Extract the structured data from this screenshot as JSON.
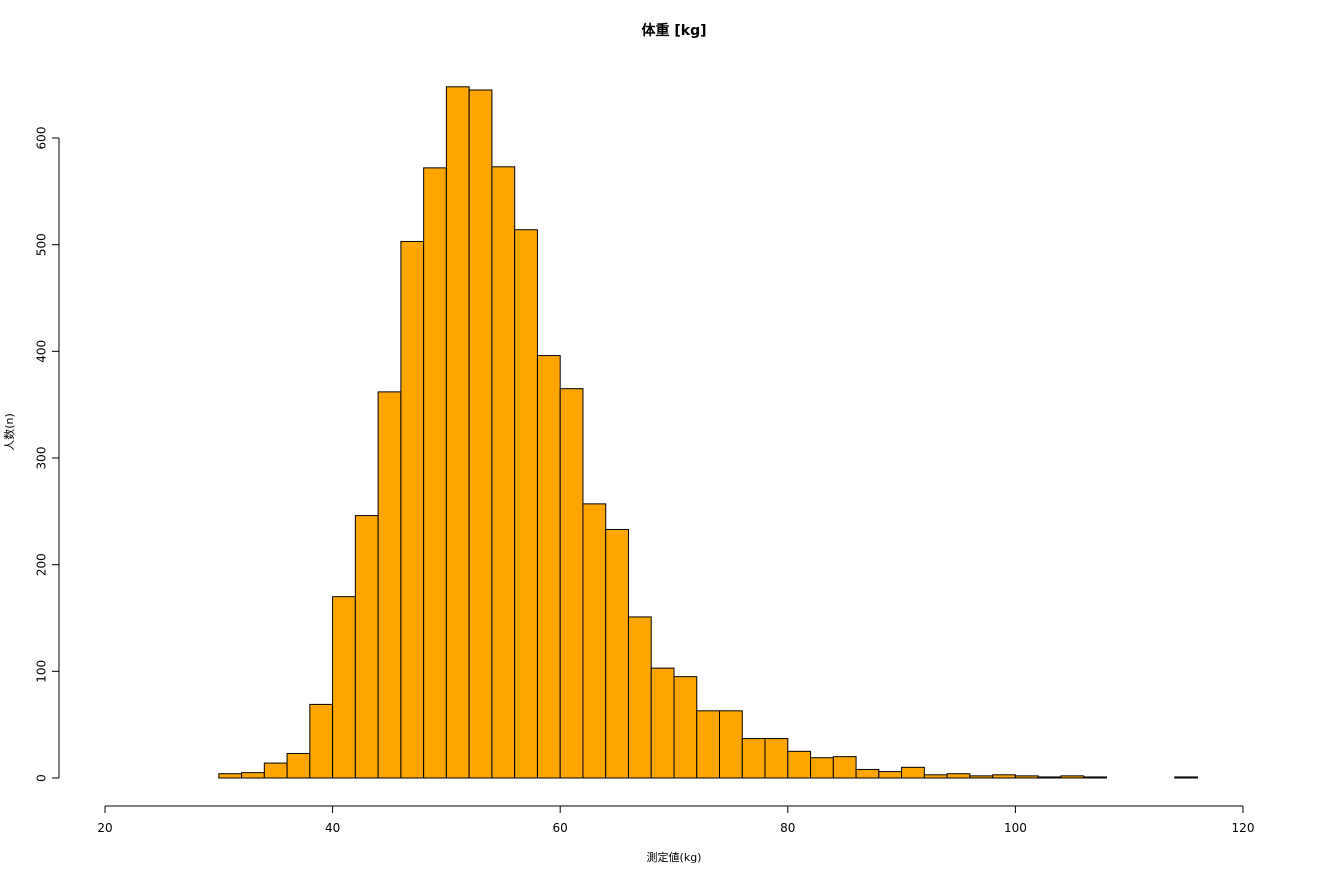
{
  "chart_data": {
    "type": "histogram",
    "title": "体重 [kg]",
    "x_label": "測定値(kg)",
    "y_label": "人数(n)",
    "bins": [
      30,
      32,
      34,
      36,
      38,
      40,
      42,
      44,
      46,
      48,
      50,
      52,
      54,
      56,
      58,
      60,
      62,
      64,
      66,
      68,
      70,
      72,
      74,
      76,
      78,
      80,
      82,
      84,
      86,
      88,
      90,
      92,
      94,
      96,
      98,
      100,
      102,
      104,
      106,
      108,
      110,
      112,
      114,
      116
    ],
    "counts": [
      4,
      5,
      14,
      23,
      69,
      170,
      246,
      362,
      503,
      572,
      648,
      645,
      573,
      514,
      396,
      365,
      257,
      233,
      151,
      103,
      95,
      63,
      63,
      37,
      37,
      25,
      19,
      20,
      8,
      6,
      10,
      3,
      4,
      2,
      3,
      2,
      1,
      2,
      1,
      0,
      0,
      0,
      1
    ],
    "color": "#ffa500",
    "xlim": [
      20,
      120
    ],
    "xticks": [
      20,
      40,
      60,
      80,
      100,
      120
    ],
    "ylim": [
      0,
      600
    ],
    "yticks": [
      0,
      100,
      200,
      300,
      400,
      500,
      600
    ]
  }
}
